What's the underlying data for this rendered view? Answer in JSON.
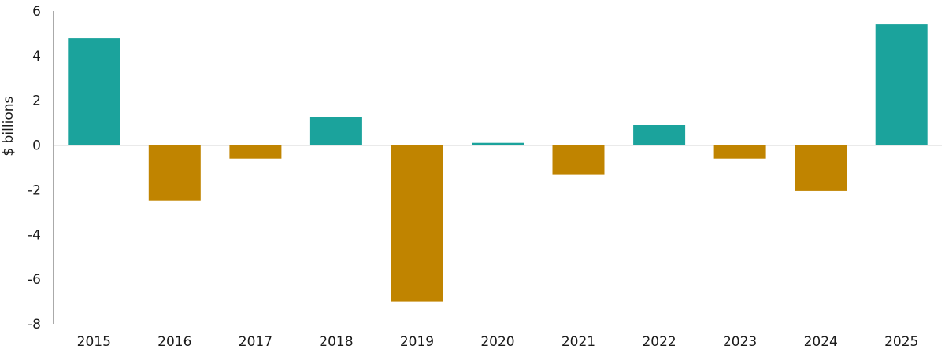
{
  "chart_data": {
    "type": "bar",
    "categories": [
      "2015",
      "2016",
      "2017",
      "2018",
      "2019",
      "2020",
      "2021",
      "2022",
      "2023",
      "2024",
      "2025"
    ],
    "values": [
      4.8,
      -2.5,
      -0.6,
      1.25,
      -7.0,
      0.1,
      -1.3,
      0.9,
      -0.6,
      -2.05,
      5.4
    ],
    "title": "",
    "xlabel": "",
    "ylabel": "$ billions",
    "ylim": [
      -8,
      6
    ],
    "yticks": [
      6,
      4,
      2,
      0,
      -2,
      -4,
      -6,
      -8
    ],
    "ytick_labels": [
      "6",
      "4",
      "2",
      "0",
      "-2",
      "-4",
      "-6",
      "-8"
    ],
    "grid": false,
    "legend": "none",
    "colors": {
      "positive": "#1ba39c",
      "negative": "#c08400",
      "axis": "#555555",
      "text": "#1a1a1a"
    }
  }
}
